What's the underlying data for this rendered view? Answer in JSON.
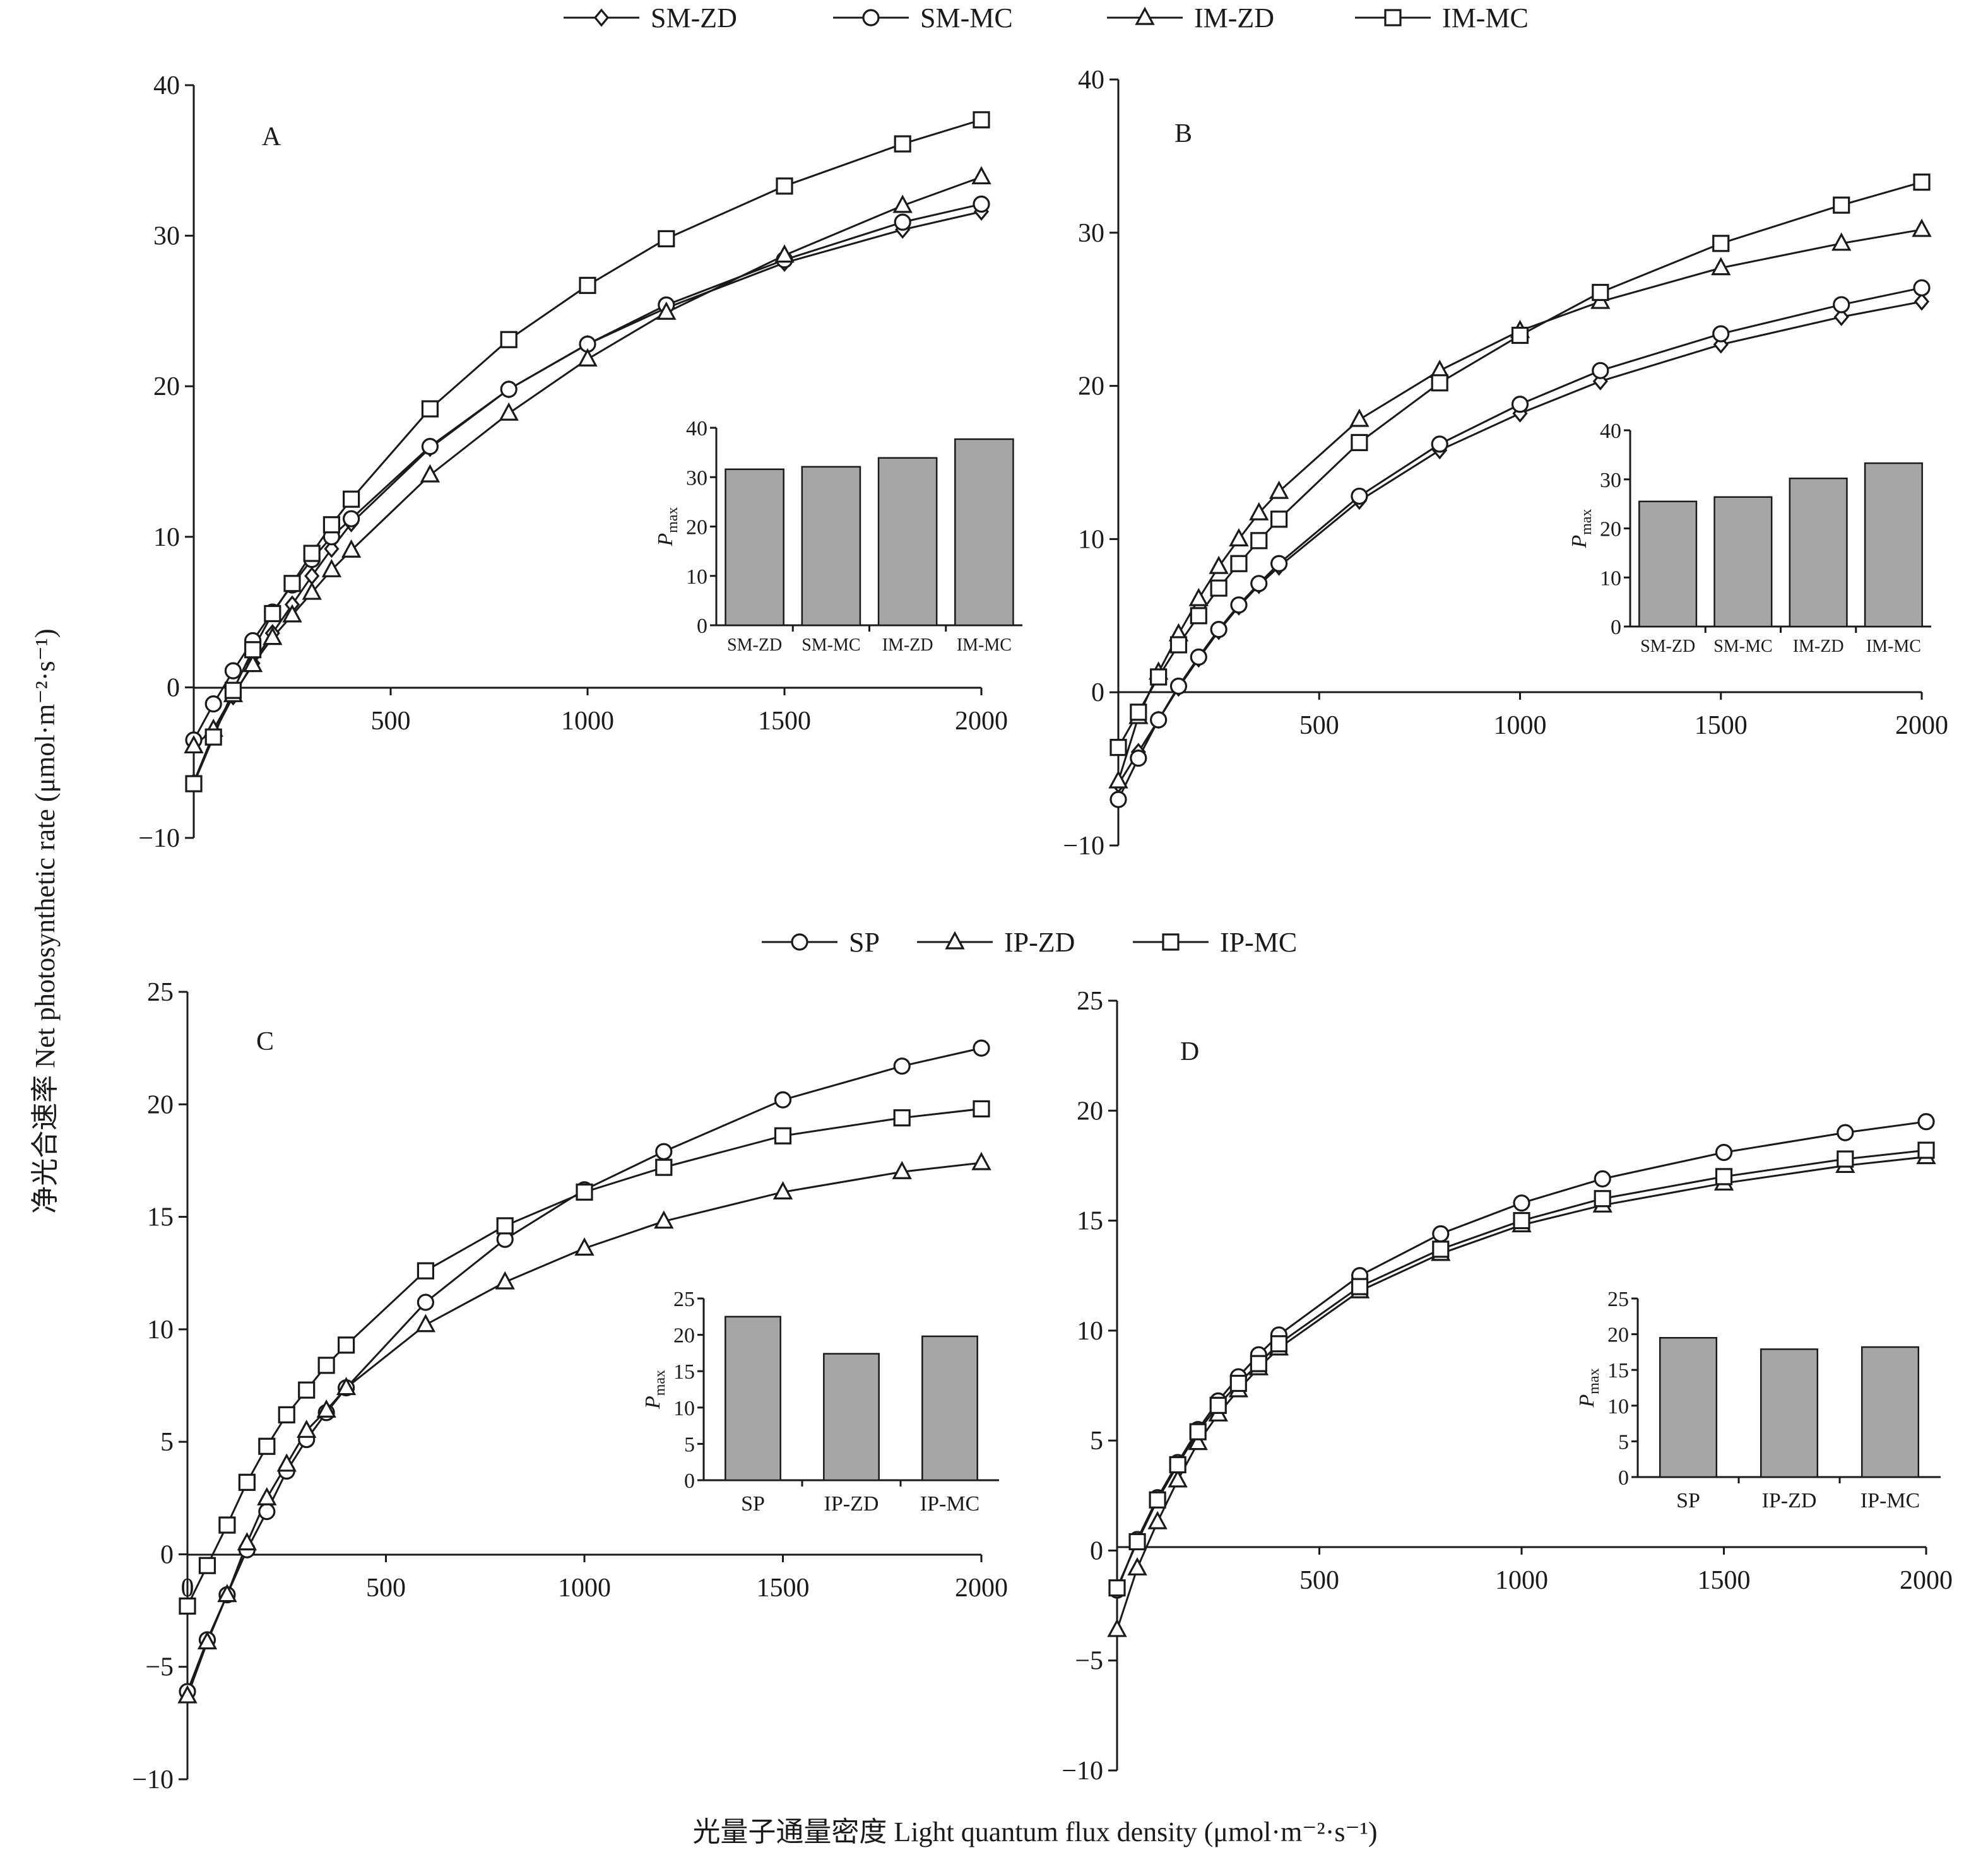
{
  "y_axis_title": "净光合速率 Net photosynthetic rate (μmol·m⁻²·s⁻¹)",
  "x_axis_title": "光量子通量密度 Light quantum flux density (μmol·m⁻²·s⁻¹)",
  "legend_top": [
    "SM-ZD",
    "SM-MC",
    "IM-ZD",
    "IM-MC"
  ],
  "legend_bottom": [
    "SP",
    "IP-ZD",
    "IP-MC"
  ],
  "inset_ylabel": "P",
  "inset_ylabel_sub": "max",
  "chart_data": [
    {
      "type": "line",
      "panel": "A",
      "x": [
        0,
        50,
        100,
        150,
        200,
        250,
        300,
        350,
        400,
        600,
        800,
        1000,
        1200,
        1500,
        1800,
        2000
      ],
      "xticks": [
        "500",
        "1000",
        "1500",
        "2000"
      ],
      "xlim": [
        0,
        2000
      ],
      "ylim": [
        -10,
        40
      ],
      "yticks": [
        "−10",
        "0",
        "10",
        "20",
        "30",
        "40"
      ],
      "series": [
        {
          "name": "SM-ZD",
          "marker": "diamond",
          "values": [
            -6.3,
            -3.1,
            -0.6,
            1.6,
            3.6,
            5.5,
            7.4,
            9.2,
            10.9,
            15.9,
            19.8,
            22.8,
            25.2,
            28.2,
            30.4,
            31.6
          ]
        },
        {
          "name": "SM-MC",
          "marker": "circle",
          "values": [
            -3.5,
            -1.1,
            1.1,
            3.1,
            5.0,
            6.8,
            8.5,
            10.0,
            11.2,
            16.0,
            19.8,
            22.8,
            25.4,
            28.4,
            30.9,
            32.1
          ]
        },
        {
          "name": "IM-ZD",
          "marker": "triangle",
          "values": [
            -3.9,
            -2.8,
            -0.5,
            1.5,
            3.3,
            4.8,
            6.3,
            7.8,
            9.1,
            14.1,
            18.2,
            21.8,
            24.9,
            28.7,
            32.0,
            33.9
          ]
        },
        {
          "name": "IM-MC",
          "marker": "square",
          "values": [
            -6.4,
            -3.3,
            -0.2,
            2.5,
            4.9,
            6.9,
            8.9,
            10.8,
            12.5,
            18.5,
            23.1,
            26.7,
            29.8,
            33.3,
            36.1,
            37.7
          ]
        }
      ],
      "inset": {
        "type": "bar",
        "categories": [
          "SM-ZD",
          "SM-MC",
          "IM-ZD",
          "IM-MC"
        ],
        "values": [
          31.6,
          32.1,
          33.9,
          37.7
        ],
        "ylim": [
          0,
          40
        ],
        "yticks": [
          "0",
          "10",
          "20",
          "30",
          "40"
        ]
      }
    },
    {
      "type": "line",
      "panel": "B",
      "x": [
        0,
        50,
        100,
        150,
        200,
        250,
        300,
        350,
        400,
        600,
        800,
        1000,
        1200,
        1500,
        1800,
        2000
      ],
      "xticks": [
        "500",
        "1000",
        "1500",
        "2000"
      ],
      "xlim": [
        0,
        2000
      ],
      "ylim": [
        -10,
        40
      ],
      "yticks": [
        "−10",
        "0",
        "10",
        "20",
        "30",
        "40"
      ],
      "series": [
        {
          "name": "SM-ZD",
          "marker": "diamond",
          "values": [
            -6.0,
            -3.9,
            -1.8,
            0.3,
            2.2,
            4.0,
            5.6,
            7.0,
            8.2,
            12.5,
            15.8,
            18.2,
            20.3,
            22.7,
            24.5,
            25.5
          ]
        },
        {
          "name": "SM-MC",
          "marker": "circle",
          "values": [
            -7.0,
            -4.3,
            -1.8,
            0.4,
            2.3,
            4.1,
            5.7,
            7.1,
            8.4,
            12.8,
            16.2,
            18.8,
            21.0,
            23.4,
            25.3,
            26.4
          ]
        },
        {
          "name": "IM-ZD",
          "marker": "triangle",
          "values": [
            -5.8,
            -1.6,
            1.3,
            3.8,
            6.1,
            8.2,
            10.0,
            11.7,
            13.1,
            17.8,
            21.0,
            23.6,
            25.5,
            27.7,
            29.3,
            30.2
          ]
        },
        {
          "name": "IM-MC",
          "marker": "square",
          "values": [
            -3.6,
            -1.3,
            1.0,
            3.1,
            5.0,
            6.8,
            8.4,
            9.9,
            11.3,
            16.3,
            20.2,
            23.3,
            26.1,
            29.3,
            31.8,
            33.3
          ]
        }
      ],
      "inset": {
        "type": "bar",
        "categories": [
          "SM-ZD",
          "SM-MC",
          "IM-ZD",
          "IM-MC"
        ],
        "values": [
          25.5,
          26.4,
          30.2,
          33.3
        ],
        "ylim": [
          0,
          40
        ],
        "yticks": [
          "0",
          "10",
          "20",
          "30",
          "40"
        ]
      }
    },
    {
      "type": "line",
      "panel": "C",
      "x": [
        0,
        50,
        100,
        150,
        200,
        250,
        300,
        350,
        400,
        600,
        800,
        1000,
        1200,
        1500,
        1800,
        2000
      ],
      "xticks": [
        "0",
        "500",
        "1000",
        "1500",
        "2000"
      ],
      "xlim": [
        0,
        2000
      ],
      "ylim": [
        -10,
        25
      ],
      "yticks": [
        "−10",
        "−5",
        "0",
        "5",
        "10",
        "15",
        "20",
        "25"
      ],
      "series": [
        {
          "name": "SP",
          "marker": "circle",
          "values": [
            -6.1,
            -3.8,
            -1.8,
            0.2,
            1.9,
            3.7,
            5.1,
            6.3,
            7.4,
            11.2,
            14.0,
            16.2,
            17.9,
            20.2,
            21.7,
            22.5
          ]
        },
        {
          "name": "IP-ZD",
          "marker": "triangle",
          "values": [
            -6.3,
            -3.9,
            -1.8,
            0.5,
            2.5,
            4.0,
            5.5,
            6.4,
            7.4,
            10.2,
            12.1,
            13.6,
            14.8,
            16.1,
            17.0,
            17.4
          ]
        },
        {
          "name": "IP-MC",
          "marker": "square",
          "values": [
            -2.3,
            -0.5,
            1.3,
            3.2,
            4.8,
            6.2,
            7.3,
            8.4,
            9.3,
            12.6,
            14.6,
            16.1,
            17.2,
            18.6,
            19.4,
            19.8
          ]
        }
      ],
      "inset": {
        "type": "bar",
        "categories": [
          "SP",
          "IP-ZD",
          "IP-MC"
        ],
        "values": [
          22.5,
          17.4,
          19.8
        ],
        "ylim": [
          0,
          25
        ],
        "yticks": [
          "0",
          "5",
          "10",
          "15",
          "20",
          "25"
        ]
      }
    },
    {
      "type": "line",
      "panel": "D",
      "x": [
        0,
        50,
        100,
        150,
        200,
        250,
        300,
        350,
        400,
        600,
        800,
        1000,
        1200,
        1500,
        1800,
        2000
      ],
      "xticks": [
        "500",
        "1000",
        "1500",
        "2000"
      ],
      "xlim": [
        0,
        2000
      ],
      "ylim": [
        -10,
        25
      ],
      "yticks": [
        "−10",
        "−5",
        "0",
        "5",
        "10",
        "15",
        "20",
        "25"
      ],
      "series": [
        {
          "name": "SP",
          "marker": "circle",
          "values": [
            -1.8,
            0.5,
            2.4,
            4.0,
            5.5,
            6.8,
            7.9,
            8.9,
            9.8,
            12.5,
            14.4,
            15.8,
            16.9,
            18.1,
            19.0,
            19.5
          ]
        },
        {
          "name": "IP-ZD",
          "marker": "triangle",
          "values": [
            -3.6,
            -0.8,
            1.3,
            3.2,
            4.9,
            6.2,
            7.3,
            8.3,
            9.2,
            11.8,
            13.5,
            14.8,
            15.7,
            16.7,
            17.5,
            17.9
          ]
        },
        {
          "name": "IP-MC",
          "marker": "square",
          "values": [
            -1.7,
            0.4,
            2.3,
            3.9,
            5.4,
            6.6,
            7.6,
            8.5,
            9.4,
            12.0,
            13.7,
            15.0,
            16.0,
            17.0,
            17.8,
            18.2
          ]
        }
      ],
      "inset": {
        "type": "bar",
        "categories": [
          "SP",
          "IP-ZD",
          "IP-MC"
        ],
        "values": [
          19.5,
          17.9,
          18.2
        ],
        "ylim": [
          0,
          25
        ],
        "yticks": [
          "0",
          "5",
          "10",
          "15",
          "20",
          "25"
        ]
      }
    }
  ]
}
